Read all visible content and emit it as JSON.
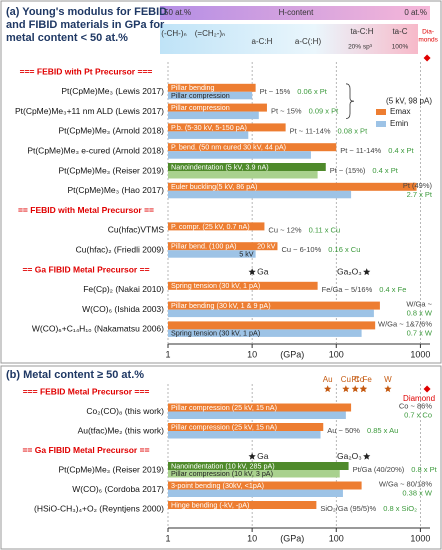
{
  "chart_data": [
    {
      "type": "bar",
      "orientation": "horizontal",
      "title": [
        "(a) Young's modulus for FEBID",
        "and FIBID materials in GPa for",
        "metal content < 50 at.%"
      ],
      "h_scale": [
        "50 at.%",
        "H-content",
        "0 at.%"
      ],
      "carbon_scale": [
        "(-CH-)ₙ",
        "(=CH₂-)ₙ",
        "a-C:H",
        "a-C(:H)",
        "ta-C:H",
        "ta-C",
        "20% sp³",
        "100%"
      ],
      "diamond": {
        "label": [
          "Dia-",
          "monds"
        ],
        "value": 1200,
        "color": "#e00000"
      },
      "categories": [
        "=== FEBID with Pt Precursor ===",
        "Pt(CpMe)Me₃ (Lewis 2017)",
        "Pt(CpMe)Me₃+11 nm ALD (Lewis 2017)",
        "Pt(CpMe)Me₃ (Arnold 2018)",
        "Pt(CpMe)Me₃ e-cured (Arnold 2018)",
        "Pt(CpMe)Me₃ (Reiser 2019)",
        "Pt(CpMe)Me₃ (Hao 2017)",
        "== FEBID with Metal Precursor ==",
        "Cu(hfac)VTMS",
        "Cu(hfac)₂ (Friedli 2009)",
        "== Ga FIBID Metal Precursor ==",
        "Fe(Cp)₂ (Nakai 2010)",
        "W(CO)₆ (Ishida 2003)",
        "W(CO)₆+C₁₄H₁₀ (Nakamatsu 2006)"
      ],
      "series": [
        {
          "name": "Emax",
          "color": "#ed7d31",
          "colors": [
            null,
            "#ed7d31",
            "#ed7d31",
            "#ed7d31",
            "#ed7d31",
            "#4f8a2b",
            "#ed7d31",
            null,
            "#ed7d31",
            "#ed7d31",
            null,
            "#ed7d31",
            "#ed7d31",
            "#ed7d31"
          ],
          "values": [
            null,
            11,
            15,
            25,
            100,
            75,
            900,
            null,
            14,
            20,
            null,
            60,
            330,
            290
          ],
          "bar_labels": [
            null,
            "Pillar bending",
            "Pillar compression",
            "P.b. (5-30 kV, 5-150 pA)",
            "P. bend. (50 nm cured 30 kV, 44 pA)",
            "Nanoindentation (5 kV, 3.9 nA)",
            "Euler buckling(5 kV, 86 pA)",
            null,
            "P. compr. (25 kV, 0.7 nA)",
            "Pillar bend. (100 pA)",
            null,
            "Spring tension (30 kV, 1 pA)",
            "Pillar bending (30 kV, 1 & 9 pA)",
            null
          ],
          "end_labels": [
            null,
            null,
            null,
            null,
            null,
            null,
            null,
            null,
            null,
            "20 kV",
            null,
            null,
            null,
            null
          ]
        },
        {
          "name": "Emin",
          "color": "#9dc3e6",
          "colors": [
            null,
            "#9dc3e6",
            "#9dc3e6",
            "#9dc3e6",
            "#9dc3e6",
            "#a9d18e",
            "#9dc3e6",
            null,
            "#9dc3e6",
            "#9dc3e6",
            null,
            "#9dc3e6",
            "#9dc3e6",
            "#9dc3e6"
          ],
          "values": [
            null,
            10,
            12,
            9,
            50,
            60,
            150,
            null,
            null,
            11,
            null,
            null,
            280,
            200
          ],
          "bar_labels": [
            null,
            "Pillar compression",
            null,
            null,
            null,
            null,
            null,
            null,
            null,
            null,
            null,
            null,
            null,
            "Spring tension (30 kV, 1 pA)"
          ],
          "end_labels": [
            null,
            null,
            null,
            null,
            null,
            null,
            null,
            null,
            null,
            "5 kV",
            null,
            null,
            null,
            null
          ]
        }
      ],
      "notes": [
        null,
        "Pt ~ 15%",
        "Pt ~ 15%",
        "Pt ~ 11-14%",
        "Pt ~ 11-14%",
        "Pt ~ (15%)",
        "Pt (49%)",
        null,
        "Cu ~ 12%",
        "Cu ~ 6-10%",
        null,
        "Fe/Ga ~ 5/16%",
        "W/Ga ~",
        "W/Ga ~ 1&7/6%"
      ],
      "ratios": [
        null,
        "0.06 x Pt",
        "0.09 x Pt",
        "0.08 x Pt",
        "0.4 x Pt",
        "0.4 x Pt",
        "2.7 x Pt",
        null,
        "0.11 x Cu",
        "0.16 x Cu",
        null,
        "0.4 x Fe",
        "0.8 x W",
        "0.7 x W"
      ],
      "annotations": [
        "(5 kV, 98 pA)"
      ],
      "refs": [
        {
          "label": "Ga",
          "value": 10
        },
        {
          "label": "Ga₂O₃",
          "value": 230
        }
      ],
      "xlim": [
        1,
        1300
      ],
      "xticks": [
        1,
        10,
        100,
        1000
      ],
      "xlabel": "(GPa)",
      "log_x": true,
      "grid": true,
      "legend": "right"
    },
    {
      "type": "bar",
      "orientation": "horizontal",
      "title": [
        "(b) Metal content ≥ 50 at.%"
      ],
      "diamond": {
        "label": [
          "Diamond"
        ],
        "value": 1200,
        "color": "#e00000"
      },
      "elements": [
        {
          "label": "Au",
          "value": 79
        },
        {
          "label": "Cu",
          "value": 130
        },
        {
          "label": "Pt",
          "value": 168
        },
        {
          "label": "Co",
          "value": 209
        },
        {
          "label": "Fe",
          "value": 211
        },
        {
          "label": "W",
          "value": 411
        }
      ],
      "element_color": "#c55a11",
      "categories": [
        "=== FEBID Metal Precursor ===",
        "Co₂(CO)₈ (this work)",
        "Au(tfac)Me₂ (this work)",
        "== Ga FIBID Metal Precursor ==",
        "Pt(CpMe)Me₃ (Reiser 2019)",
        "W(CO)₆ (Cordoba 2017)",
        "(HSiO-CH₃)₄+O₂ (Reyntjens 2000)"
      ],
      "series": [
        {
          "name": "Emax",
          "color": "#ed7d31",
          "colors": [
            null,
            "#ed7d31",
            "#ed7d31",
            null,
            "#4f8a2b",
            "#ed7d31",
            "#ed7d31"
          ],
          "values": [
            null,
            150,
            70,
            null,
            140,
            200,
            58
          ],
          "bar_labels": [
            null,
            "Pillar compression (25 kV, 15 nA)",
            "Pillar compression (25 kV, 15 nA)",
            null,
            "Nanoindentation (10 kV, 285 pA)",
            "3-point bending (30kV, <1pA)",
            "Hinge bending (-kV, -pA)"
          ]
        },
        {
          "name": "Emin",
          "color": "#9dc3e6",
          "colors": [
            null,
            "#9dc3e6",
            "#9dc3e6",
            null,
            "#a9d18e",
            "#9dc3e6",
            "#9dc3e6"
          ],
          "values": [
            null,
            130,
            65,
            null,
            110,
            120,
            null
          ],
          "bar_labels": [
            null,
            null,
            null,
            null,
            "Pillar compression (10 kV, 3 pA)",
            null,
            null
          ]
        }
      ],
      "notes": [
        null,
        "Co ~ 86%",
        "Au ~ 50%",
        null,
        "Pt/Ga (40/20%)",
        "W/Ga ~ 80/18%",
        "SiO₂/Ga (95/5)%"
      ],
      "ratios": [
        null,
        "0.7 x Co",
        "0.85 x Au",
        null,
        "0.8 x Pt",
        "0.38 x W",
        "0.8 x SiO₂"
      ],
      "refs": [
        {
          "label": "Ga",
          "value": 10
        },
        {
          "label": "Ga₂O₃",
          "value": 230
        }
      ],
      "xlim": [
        1,
        1300
      ],
      "xticks": [
        1,
        10,
        100,
        1000
      ],
      "xlabel": "(GPa)",
      "log_x": true,
      "grid": true
    }
  ]
}
